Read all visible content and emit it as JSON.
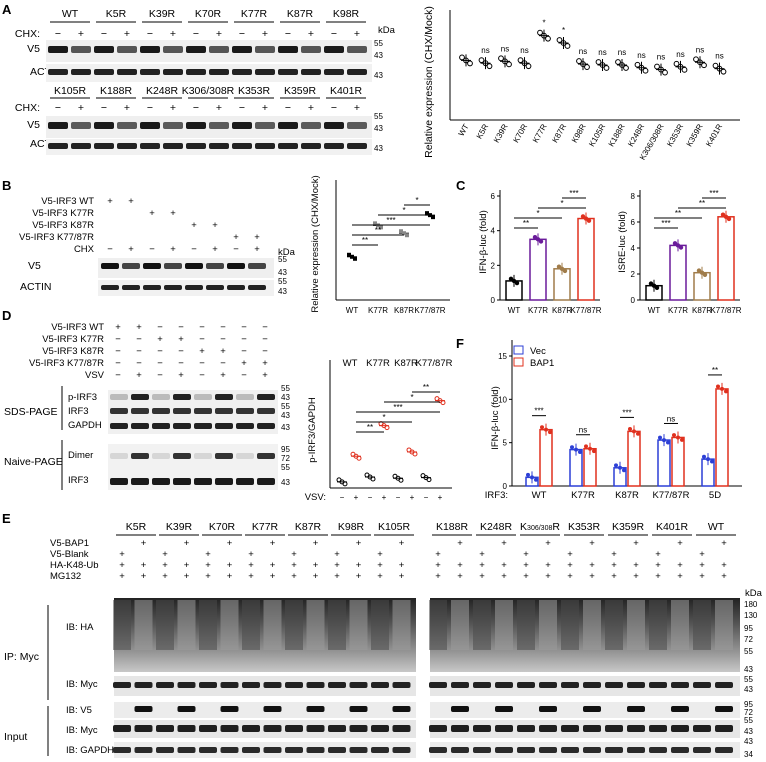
{
  "panels": [
    "A",
    "B",
    "C",
    "D",
    "E",
    "F"
  ],
  "kda": "kDa",
  "colors": {
    "wt": "#000000",
    "k77": "#6a1b9a",
    "k87": "#a07c4a",
    "k77_87": "#e0301e",
    "vec": "#2c3fd6",
    "bap1": "#e0301e",
    "mut": "#e0301e"
  },
  "A": {
    "top_row_labels": [
      "WT",
      "K5R",
      "K39R",
      "K70R",
      "K77R",
      "K87R",
      "K98R"
    ],
    "bottom_row_labels": [
      "K105R",
      "K188R",
      "K248R",
      "K306/308R",
      "K353R",
      "K359R",
      "K401R"
    ],
    "cond_label": "CHX:",
    "minus": "−",
    "plus": "+",
    "blot_labels": [
      "V5",
      "ACTIN"
    ],
    "markers_top": [
      "55",
      "43",
      "43"
    ],
    "markers_bottom": [
      "55",
      "43",
      "43"
    ],
    "chart_data": {
      "type": "scatter",
      "ylabel": "Relative expression (CHX/Mock)",
      "categories": [
        "WT",
        "K5R",
        "K39R",
        "K70R",
        "K77R",
        "K87R",
        "K98R",
        "K105R",
        "K188R",
        "K248R",
        "K306/308R",
        "K353R",
        "K359R",
        "K401R"
      ],
      "values": [
        0.65,
        0.62,
        0.64,
        0.62,
        0.92,
        0.84,
        0.61,
        0.6,
        0.6,
        0.57,
        0.55,
        0.58,
        0.63,
        0.56
      ],
      "sig": [
        "",
        "ns",
        "ns",
        "ns",
        "*",
        "*",
        "ns",
        "ns",
        "ns",
        "ns",
        "ns",
        "ns",
        "ns",
        "ns"
      ],
      "ylim": [
        0,
        1.2
      ]
    }
  },
  "B": {
    "rows": [
      {
        "label": "V5-IRF3 WT",
        "marks": [
          "+",
          "+",
          "",
          "",
          "",
          "",
          "",
          ""
        ]
      },
      {
        "label": "V5-IRF3 K77R",
        "marks": [
          "",
          "",
          "+",
          "+",
          "",
          "",
          "",
          ""
        ]
      },
      {
        "label": "V5-IRF3 K87R",
        "marks": [
          "",
          "",
          "",
          "",
          "+",
          "+",
          "",
          ""
        ]
      },
      {
        "label": "V5-IRF3 K77/87R",
        "marks": [
          "",
          "",
          "",
          "",
          "",
          "",
          "+",
          "+"
        ]
      },
      {
        "label": "CHX",
        "marks": [
          "−",
          "+",
          "−",
          "+",
          "−",
          "+",
          "−",
          "+"
        ]
      }
    ],
    "blot_labels": [
      "V5",
      "ACTIN"
    ],
    "markers": [
      "55",
      "43",
      "55",
      "43"
    ],
    "chart_data": {
      "type": "scatter",
      "ylabel": "Relative expression (CHX/Mock)",
      "categories": [
        "WT",
        "K77R",
        "K87R",
        "K77/87R"
      ],
      "values": [
        0.55,
        0.95,
        0.85,
        1.08
      ],
      "brackets": [
        "**",
        "**",
        "***",
        "*",
        "*"
      ],
      "ylim": [
        0,
        1.4
      ]
    }
  },
  "C": {
    "chart_data": [
      {
        "type": "bar",
        "ylabel": "IFN-β-luc (fold)",
        "categories": [
          "WT",
          "K77R",
          "K87R",
          "K77/87R"
        ],
        "values": [
          1.1,
          3.5,
          1.8,
          4.7
        ],
        "ylim": [
          0,
          6
        ],
        "yticks": [
          "0",
          "2",
          "4",
          "6"
        ],
        "brackets": [
          "**",
          "*",
          "*",
          "***"
        ]
      },
      {
        "type": "bar",
        "ylabel": "ISRE-luc (fold)",
        "categories": [
          "WT",
          "K77R",
          "K87R",
          "K77/87R"
        ],
        "values": [
          1.1,
          4.2,
          2.1,
          6.4
        ],
        "ylim": [
          0,
          8
        ],
        "yticks": [
          "0",
          "2",
          "4",
          "6",
          "8"
        ],
        "brackets": [
          "***",
          "**",
          "**",
          "***"
        ]
      }
    ]
  },
  "D": {
    "rows": [
      {
        "label": "V5-IRF3 WT",
        "marks": [
          "+",
          "+",
          "−",
          "−",
          "−",
          "−",
          "−",
          "−"
        ]
      },
      {
        "label": "V5-IRF3 K77R",
        "marks": [
          "−",
          "−",
          "+",
          "+",
          "−",
          "−",
          "−",
          "−"
        ]
      },
      {
        "label": "V5-IRF3 K87R",
        "marks": [
          "−",
          "−",
          "−",
          "−",
          "+",
          "+",
          "−",
          "−"
        ]
      },
      {
        "label": "V5-IRF3 K77/87R",
        "marks": [
          "−",
          "−",
          "−",
          "−",
          "−",
          "−",
          "+",
          "+"
        ]
      },
      {
        "label": "VSV",
        "marks": [
          "−",
          "+",
          "−",
          "+",
          "−",
          "+",
          "−",
          "+"
        ]
      }
    ],
    "gel_labels": [
      "SDS-PAGE",
      "Naive-PAGE"
    ],
    "blot_labels": [
      "p-IRF3",
      "IRF3",
      "GAPDH",
      "Dimer",
      "IRF3"
    ],
    "markers": [
      "55",
      "43",
      "55",
      "43",
      "43",
      "95",
      "72",
      "55",
      "43"
    ],
    "chart_data": {
      "type": "scatter",
      "ylabel": "p-IRF3/GAPDH",
      "groups": [
        "WT",
        "K77R",
        "K87R",
        "K77/87R"
      ],
      "condition_label": "VSV:",
      "conditions": [
        "−",
        "+",
        "−",
        "+",
        "−",
        "+",
        "−",
        "+"
      ],
      "values": [
        1.0,
        5.2,
        1.8,
        10.2,
        1.6,
        5.9,
        1.7,
        14.3
      ],
      "brackets": [
        "**",
        "*",
        "***",
        "*",
        "**"
      ]
    }
  },
  "E": {
    "top_labels_left": [
      "K5R",
      "K39R",
      "K70R",
      "K77R",
      "K87R",
      "K98R",
      "K105R"
    ],
    "top_labels_right": [
      "K188R",
      "K248R",
      "K306/308R",
      "K353R",
      "K359R",
      "K401R",
      "WT"
    ],
    "k306_main": "K",
    "k306_sub": "306/308",
    "k306_suffix": "R",
    "row_labels": [
      "V5-BAP1",
      "V5-Blank",
      "HA-K48-Ub",
      "MG132"
    ],
    "ip_label": "IP: Myc",
    "input_label": "Input",
    "ib_labels": [
      "IB: HA",
      "IB: Myc",
      "IB: V5",
      "IB: Myc",
      "IB: GAPDH"
    ],
    "markers_ha": [
      "180",
      "130",
      "95",
      "72",
      "55",
      "43"
    ],
    "markers_myc": [
      "55",
      "43"
    ],
    "markers_input": [
      "95",
      "72",
      "55",
      "43",
      "43",
      "34"
    ],
    "kda_label": "kDa"
  },
  "F": {
    "legend": [
      "Vec",
      "BAP1"
    ],
    "chart_data": {
      "type": "bar",
      "ylabel": "IFN-β-luc (fold)",
      "x_prefix": "IRF3:",
      "categories": [
        "WT",
        "K77R",
        "K87R",
        "K77/87R",
        "5D"
      ],
      "series": [
        {
          "name": "Vec",
          "values": [
            1.0,
            4.2,
            2.1,
            5.3,
            3.1
          ]
        },
        {
          "name": "BAP1",
          "values": [
            6.5,
            4.3,
            6.3,
            5.6,
            11.2
          ]
        }
      ],
      "sig": [
        "***",
        "ns",
        "***",
        "ns",
        "**"
      ],
      "ylim": [
        0,
        15
      ],
      "yticks": [
        "0",
        "5",
        "10",
        "15"
      ]
    }
  }
}
